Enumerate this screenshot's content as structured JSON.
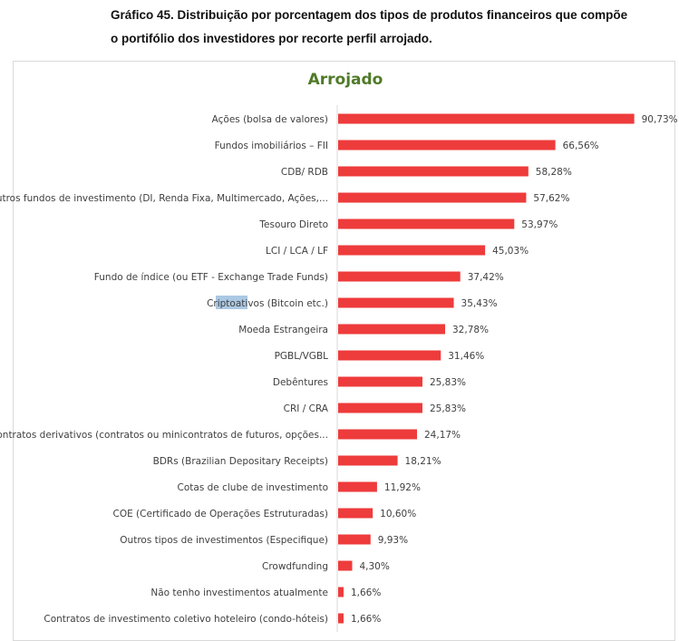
{
  "caption": {
    "line1": "Gráfico 45. Distribuição por porcentagem dos tipos de produtos financeiros que compõe",
    "line2": "o portifólio dos investidores por recorte perfil arrojado."
  },
  "chart_data": {
    "type": "bar",
    "orientation": "horizontal",
    "title": "Arrojado",
    "xlabel": "",
    "ylabel": "",
    "xlim": [
      0,
      100
    ],
    "grid": false,
    "bar_color": "#ee3b3b",
    "title_color": "#4f7a28",
    "categories": [
      "Ações (bolsa de valores)",
      "Fundos imobiliários – FII",
      "CDB/ RDB",
      "Outros fundos de investimento (DI, Renda Fixa, Multimercado, Ações,...",
      "Tesouro Direto",
      "LCI / LCA / LF",
      "Fundo de índice (ou ETF - Exchange Trade Funds)",
      "Criptoativos (Bitcoin etc.)",
      "Moeda Estrangeira",
      "PGBL/VGBL",
      "Debêntures",
      "CRI / CRA",
      "Contratos derivativos (contratos ou minicontratos de futuros, opções...",
      "BDRs (Brazilian Depositary Receipts)",
      "Cotas de clube de investimento",
      "COE (Certificado de Operações Estruturadas)",
      "Outros tipos de investimentos (Especifique)",
      "Crowdfunding",
      "Não tenho investimentos atualmente",
      "Contratos de investimento coletivo hoteleiro (condo-hóteis)"
    ],
    "values": [
      90.73,
      66.56,
      58.28,
      57.62,
      53.97,
      45.03,
      37.42,
      35.43,
      32.78,
      31.46,
      25.83,
      25.83,
      24.17,
      18.21,
      11.92,
      10.6,
      9.93,
      4.3,
      1.66,
      1.66
    ],
    "data_labels": [
      "90,73%",
      "66,56%",
      "58,28%",
      "57,62%",
      "53,97%",
      "45,03%",
      "37,42%",
      "35,43%",
      "32,78%",
      "31,46%",
      "25,83%",
      "25,83%",
      "24,17%",
      "18,21%",
      "11,92%",
      "10,60%",
      "9,93%",
      "4,30%",
      "1,66%",
      "1,66%"
    ]
  }
}
